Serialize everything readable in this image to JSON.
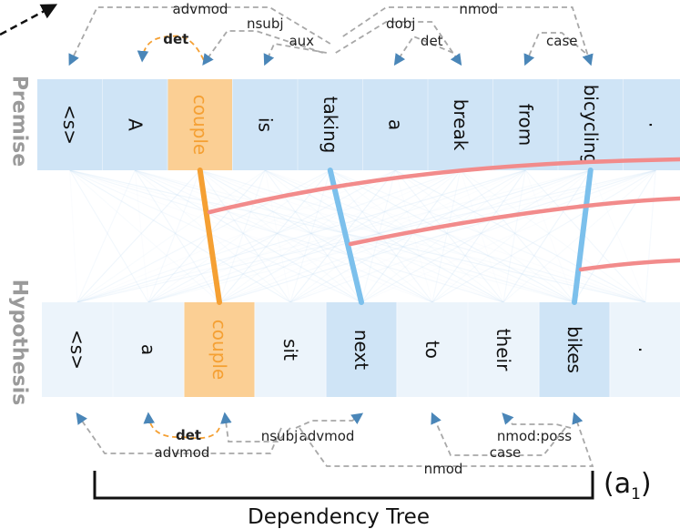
{
  "premise": {
    "side_label": "Premise",
    "tokens": [
      "<s>",
      "A",
      "couple",
      "is",
      "taking",
      "a",
      "break",
      "from",
      "bicycling",
      "."
    ],
    "highlight_index": 2,
    "colors": {
      "band": "#cfe4f6",
      "highlight": "#fbcf94",
      "highlight_text": "#f5a033",
      "arcs": "#a8a8a8",
      "arc_highlight": "#f5a033",
      "arrowhead": "#4a86b8"
    }
  },
  "hypothesis": {
    "side_label": "Hypothesis",
    "tokens": [
      "<s>",
      "a",
      "couple",
      "sit",
      "next",
      "to",
      "their",
      "bikes",
      "."
    ],
    "highlight_index": 2,
    "emphasized_indices": [
      4,
      7
    ],
    "colors": {
      "band": "#ecf4fb",
      "emphasized": "#cfe4f6",
      "highlight": "#fbcf94",
      "highlight_text": "#f5a033"
    }
  },
  "premise_dependencies": [
    {
      "label": "advmod",
      "bold": false,
      "highlighted": false
    },
    {
      "label": "det",
      "bold": true,
      "highlighted": true
    },
    {
      "label": "nsubj",
      "bold": false,
      "highlighted": false
    },
    {
      "label": "aux",
      "bold": false,
      "highlighted": false
    },
    {
      "label": "dobj",
      "bold": false,
      "highlighted": false
    },
    {
      "label": "det",
      "bold": false,
      "highlighted": false
    },
    {
      "label": "nmod",
      "bold": false,
      "highlighted": false
    },
    {
      "label": "case",
      "bold": false,
      "highlighted": false
    }
  ],
  "hypothesis_dependencies": [
    {
      "label": "det",
      "bold": true,
      "highlighted": true
    },
    {
      "label": "advmod",
      "bold": false,
      "highlighted": false
    },
    {
      "label": "nsubj",
      "bold": false,
      "highlighted": false
    },
    {
      "label": "advmod",
      "bold": false,
      "highlighted": false
    },
    {
      "label": "nmod:poss",
      "bold": false,
      "highlighted": false
    },
    {
      "label": "case",
      "bold": false,
      "highlighted": false
    },
    {
      "label": "nmod",
      "bold": false,
      "highlighted": false
    }
  ],
  "alignments": {
    "strong": [
      {
        "from_premise": "couple",
        "to_hypothesis": "couple",
        "color": "#f5a033"
      },
      {
        "from_premise": "taking",
        "to_hypothesis": "next",
        "color": "#7cc0ec"
      },
      {
        "from_premise": "bicycling",
        "to_hypothesis": "bikes",
        "color": "#7cc0ec"
      }
    ],
    "faint_color": "#cfe4f6",
    "cross_panel_color": "#f28b8b"
  },
  "caption": {
    "text": "Dependency Tree",
    "panel_letter": "(a",
    "panel_subscript": "1",
    "panel_close": ")"
  }
}
